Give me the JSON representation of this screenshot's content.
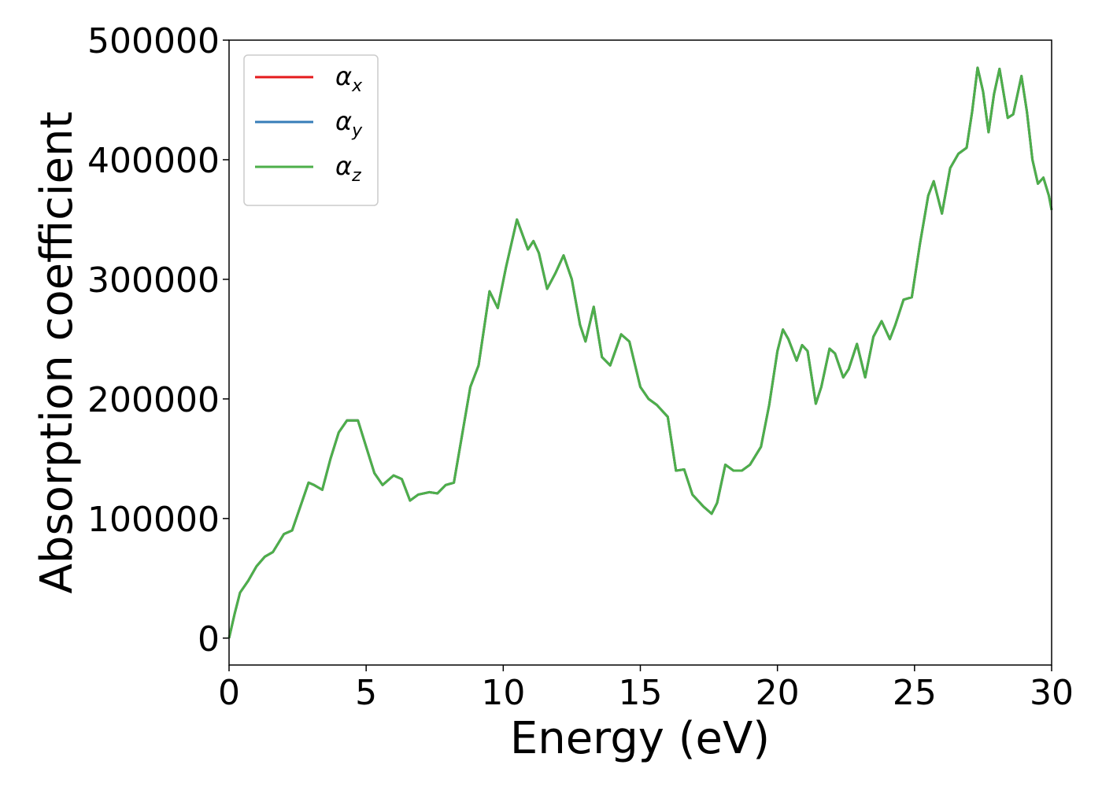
{
  "chart_data": {
    "type": "line",
    "xlabel": "Energy (eV)",
    "ylabel": "Absorption coefficient",
    "xlim": [
      0,
      30
    ],
    "ylim": [
      -22500,
      500000
    ],
    "xticks": [
      0,
      5,
      10,
      15,
      20,
      25,
      30
    ],
    "yticks": [
      0,
      100000,
      200000,
      300000,
      400000,
      500000
    ],
    "legend": "upper left",
    "grid": false,
    "x": [
      0,
      0.2,
      0.4,
      0.7,
      1.0,
      1.3,
      1.6,
      2.0,
      2.3,
      2.6,
      2.9,
      3.1,
      3.4,
      3.7,
      4.0,
      4.3,
      4.7,
      5.0,
      5.3,
      5.6,
      6.0,
      6.3,
      6.6,
      6.9,
      7.3,
      7.6,
      7.9,
      8.2,
      8.5,
      8.8,
      9.1,
      9.5,
      9.8,
      10.1,
      10.5,
      10.9,
      11.1,
      11.3,
      11.6,
      11.9,
      12.2,
      12.5,
      12.8,
      13.0,
      13.3,
      13.6,
      13.9,
      14.3,
      14.6,
      15.0,
      15.3,
      15.6,
      16.0,
      16.3,
      16.6,
      16.9,
      17.3,
      17.6,
      17.8,
      18.1,
      18.4,
      18.7,
      19.0,
      19.4,
      19.7,
      20.0,
      20.2,
      20.4,
      20.7,
      20.9,
      21.1,
      21.4,
      21.6,
      21.9,
      22.1,
      22.4,
      22.6,
      22.9,
      23.2,
      23.5,
      23.8,
      24.1,
      24.3,
      24.6,
      24.9,
      25.2,
      25.5,
      25.7,
      26.0,
      26.3,
      26.6,
      26.9,
      27.1,
      27.3,
      27.5,
      27.7,
      27.9,
      28.1,
      28.4,
      28.6,
      28.9,
      29.1,
      29.3,
      29.5,
      29.7,
      29.9,
      30
    ],
    "series": [
      {
        "name": "αx",
        "color": "#e41a1c",
        "values": [
          0,
          20000,
          38000,
          48000,
          60000,
          68000,
          72000,
          87000,
          90000,
          110000,
          130000,
          128000,
          124000,
          150000,
          172000,
          182000,
          182000,
          160000,
          138000,
          128000,
          136000,
          133000,
          115000,
          120000,
          122000,
          121000,
          128000,
          130000,
          170000,
          210000,
          228000,
          290000,
          276000,
          310000,
          350000,
          325000,
          332000,
          322000,
          292000,
          305000,
          320000,
          300000,
          262000,
          248000,
          277000,
          235000,
          228000,
          254000,
          248000,
          210000,
          200000,
          195000,
          185000,
          140000,
          141000,
          120000,
          110000,
          104000,
          113000,
          145000,
          140000,
          140000,
          145000,
          160000,
          195000,
          240000,
          258000,
          250000,
          232000,
          245000,
          240000,
          196000,
          210000,
          242000,
          238000,
          218000,
          225000,
          246000,
          218000,
          252000,
          265000,
          250000,
          262000,
          283000,
          285000,
          330000,
          370000,
          382000,
          355000,
          393000,
          405000,
          410000,
          440000,
          477000,
          457000,
          423000,
          455000,
          476000,
          435000,
          438000,
          470000,
          440000,
          400000,
          380000,
          385000,
          370000,
          358000
        ]
      },
      {
        "name": "αy",
        "color": "#377eb8",
        "values": [
          0,
          20000,
          38000,
          48000,
          60000,
          68000,
          72000,
          87000,
          90000,
          110000,
          130000,
          128000,
          124000,
          150000,
          172000,
          182000,
          182000,
          160000,
          138000,
          128000,
          136000,
          133000,
          115000,
          120000,
          122000,
          121000,
          128000,
          130000,
          170000,
          210000,
          228000,
          290000,
          276000,
          310000,
          350000,
          325000,
          332000,
          322000,
          292000,
          305000,
          320000,
          300000,
          262000,
          248000,
          277000,
          235000,
          228000,
          254000,
          248000,
          210000,
          200000,
          195000,
          185000,
          140000,
          141000,
          120000,
          110000,
          104000,
          113000,
          145000,
          140000,
          140000,
          145000,
          160000,
          195000,
          240000,
          258000,
          250000,
          232000,
          245000,
          240000,
          196000,
          210000,
          242000,
          238000,
          218000,
          225000,
          246000,
          218000,
          252000,
          265000,
          250000,
          262000,
          283000,
          285000,
          330000,
          370000,
          382000,
          355000,
          393000,
          405000,
          410000,
          440000,
          477000,
          457000,
          423000,
          455000,
          476000,
          435000,
          438000,
          470000,
          440000,
          400000,
          380000,
          385000,
          370000,
          358000
        ]
      },
      {
        "name": "αz",
        "color": "#4daf4a",
        "values": [
          0,
          20000,
          38000,
          48000,
          60000,
          68000,
          72000,
          87000,
          90000,
          110000,
          130000,
          128000,
          124000,
          150000,
          172000,
          182000,
          182000,
          160000,
          138000,
          128000,
          136000,
          133000,
          115000,
          120000,
          122000,
          121000,
          128000,
          130000,
          170000,
          210000,
          228000,
          290000,
          276000,
          310000,
          350000,
          325000,
          332000,
          322000,
          292000,
          305000,
          320000,
          300000,
          262000,
          248000,
          277000,
          235000,
          228000,
          254000,
          248000,
          210000,
          200000,
          195000,
          185000,
          140000,
          141000,
          120000,
          110000,
          104000,
          113000,
          145000,
          140000,
          140000,
          145000,
          160000,
          195000,
          240000,
          258000,
          250000,
          232000,
          245000,
          240000,
          196000,
          210000,
          242000,
          238000,
          218000,
          225000,
          246000,
          218000,
          252000,
          265000,
          250000,
          262000,
          283000,
          285000,
          330000,
          370000,
          382000,
          355000,
          393000,
          405000,
          410000,
          440000,
          477000,
          457000,
          423000,
          455000,
          476000,
          435000,
          438000,
          470000,
          440000,
          400000,
          380000,
          385000,
          370000,
          358000
        ]
      }
    ]
  }
}
